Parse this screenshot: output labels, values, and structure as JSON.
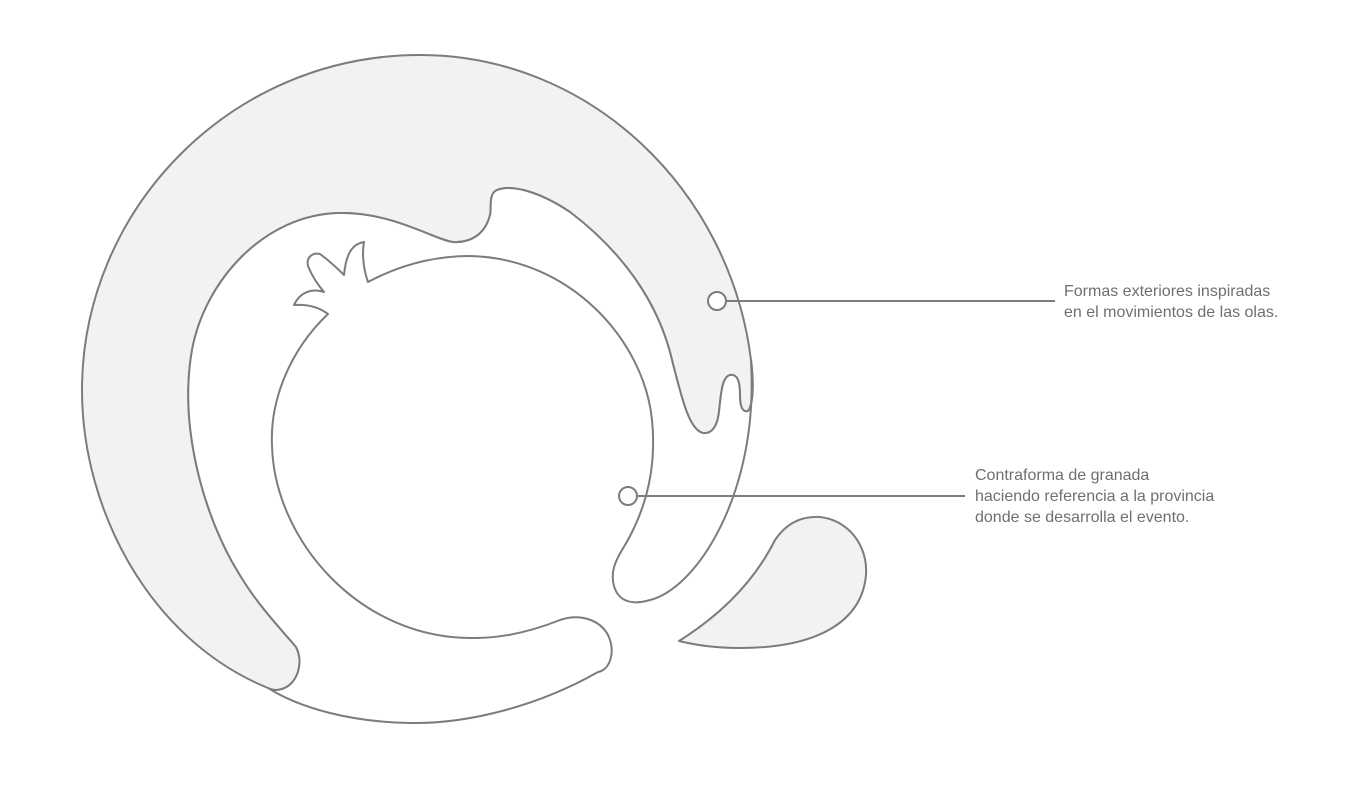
{
  "colors": {
    "fill": "#f2f2f3",
    "stroke": "#7c7c7c",
    "text": "#6f6f6f",
    "background": "#ffffff"
  },
  "annotations": {
    "waves": {
      "lines": [
        "Formas exteriores inspiradas",
        "en el movimientos de las olas."
      ]
    },
    "pomegranate": {
      "lines": [
        "Contraforma de granada",
        "haciendo referencia a la provincia",
        "donde se desarrolla el evento."
      ]
    }
  }
}
